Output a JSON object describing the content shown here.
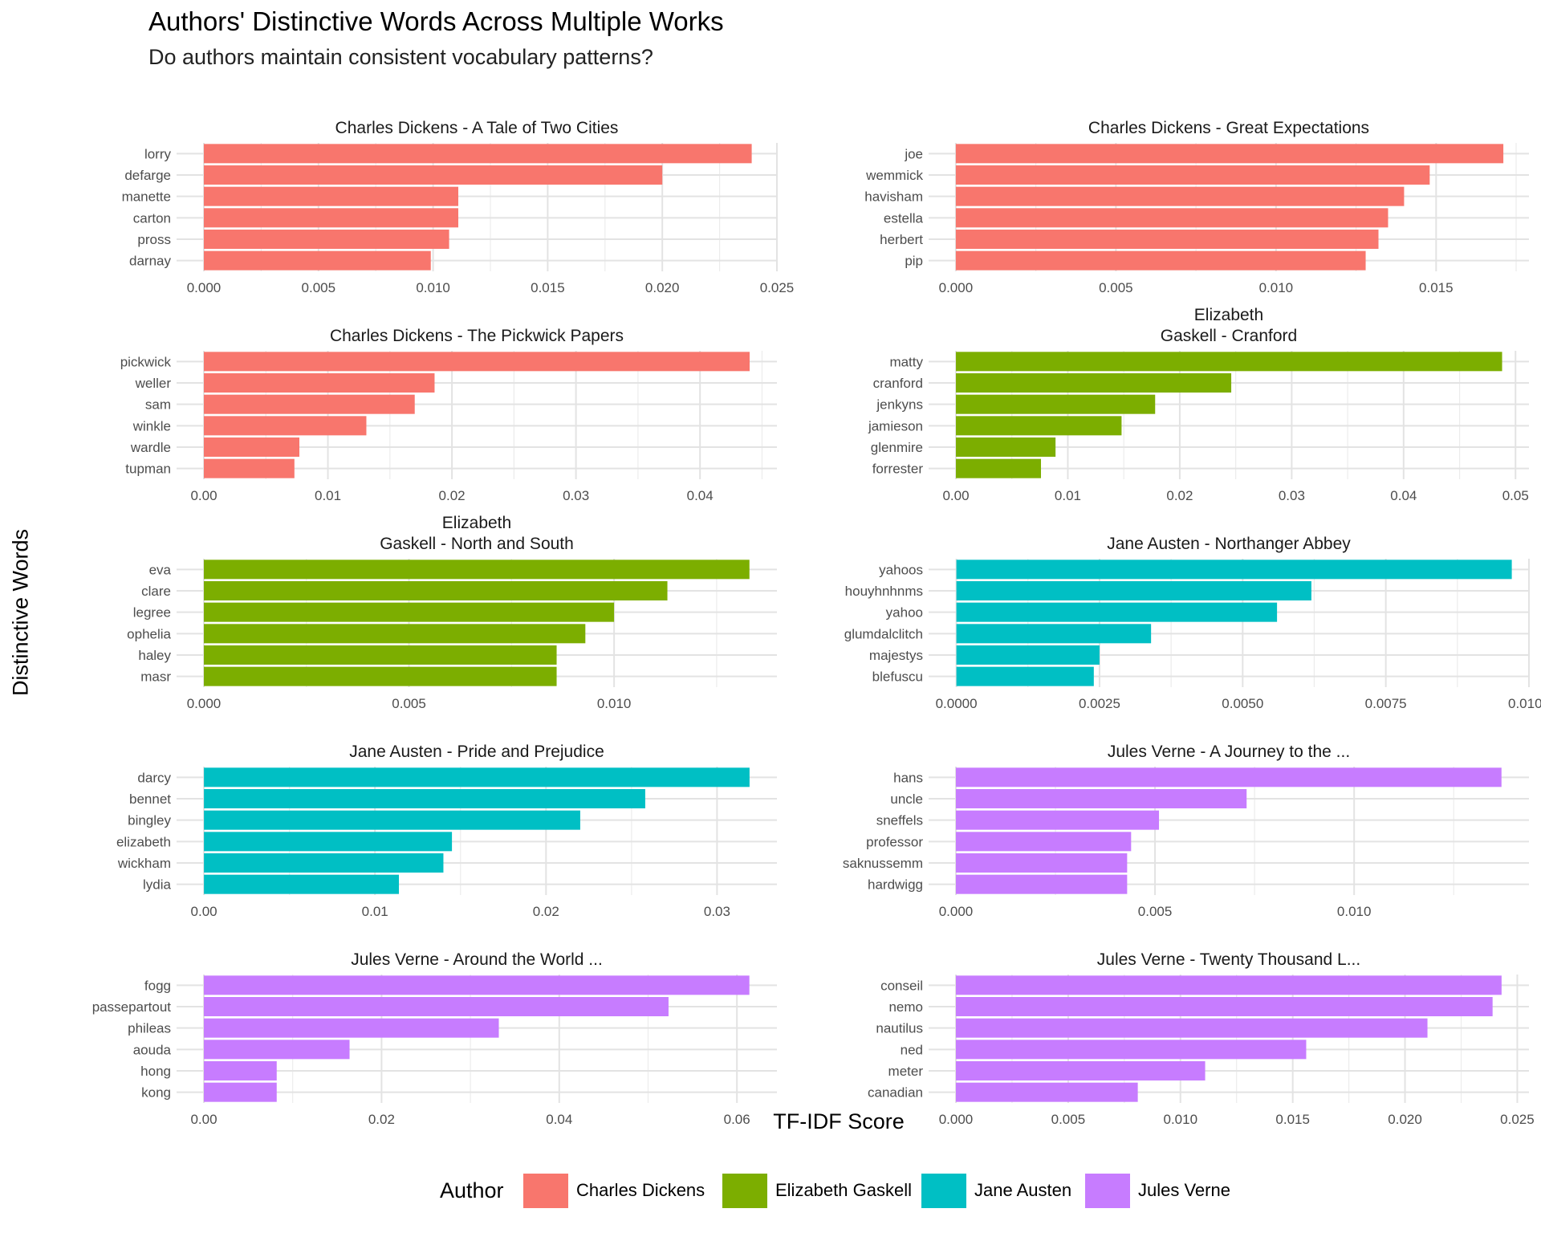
{
  "title": "Authors' Distinctive Words Across Multiple Works",
  "subtitle": "Do authors maintain consistent vocabulary patterns?",
  "xlabel": "TF-IDF Score",
  "ylabel": "Distinctive Words",
  "legend": {
    "title": "Author",
    "position": "bottom",
    "entries": [
      {
        "name": "Charles Dickens",
        "color": "#F8766D"
      },
      {
        "name": "Elizabeth Gaskell",
        "color": "#7CAE00"
      },
      {
        "name": "Jane Austen",
        "color": "#00BFC4"
      },
      {
        "name": "Jules Verne",
        "color": "#C77CFF"
      }
    ]
  },
  "chart_data": [
    {
      "type": "bar",
      "orientation": "horizontal",
      "panel_title": "Charles Dickens - A Tale of Two Cities",
      "author": "Charles Dickens",
      "categories": [
        "lorry",
        "defarge",
        "manette",
        "carton",
        "pross",
        "darnay"
      ],
      "values": [
        0.0239,
        0.02,
        0.0111,
        0.0111,
        0.0107,
        0.0099
      ],
      "ticks": [
        "0.000",
        "0.005",
        "0.010",
        "0.015",
        "0.020",
        "0.025"
      ],
      "xlim": [
        -0.00119,
        0.025
      ],
      "tick_values": [
        0,
        0.005,
        0.01,
        0.015,
        0.02,
        0.025
      ]
    },
    {
      "type": "bar",
      "orientation": "horizontal",
      "panel_title": "Charles Dickens - Great Expectations",
      "author": "Charles Dickens",
      "categories": [
        "joe",
        "wemmick",
        "havisham",
        "estella",
        "herbert",
        "pip"
      ],
      "values": [
        0.0171,
        0.0148,
        0.014,
        0.0135,
        0.0132,
        0.0128
      ],
      "ticks": [
        "0.000",
        "0.005",
        "0.010",
        "0.015"
      ],
      "xlim": [
        -0.00085,
        0.0179
      ],
      "tick_values": [
        0,
        0.005,
        0.01,
        0.015
      ]
    },
    {
      "type": "bar",
      "orientation": "horizontal",
      "panel_title": "Charles Dickens - The Pickwick Papers",
      "author": "Charles Dickens",
      "categories": [
        "pickwick",
        "weller",
        "sam",
        "winkle",
        "wardle",
        "tupman"
      ],
      "values": [
        0.044,
        0.0186,
        0.017,
        0.0131,
        0.0077,
        0.0073
      ],
      "ticks": [
        "0.00",
        "0.01",
        "0.02",
        "0.03",
        "0.04"
      ],
      "xlim": [
        -0.0022,
        0.0462
      ],
      "tick_values": [
        0,
        0.01,
        0.02,
        0.03,
        0.04
      ]
    },
    {
      "type": "bar",
      "orientation": "horizontal",
      "panel_title": "Elizabeth\nGaskell - Cranford",
      "author": "Elizabeth Gaskell",
      "categories": [
        "matty",
        "cranford",
        "jenkyns",
        "jamieson",
        "glenmire",
        "forrester"
      ],
      "values": [
        0.0488,
        0.0246,
        0.0178,
        0.0148,
        0.0089,
        0.0076
      ],
      "ticks": [
        "0.00",
        "0.01",
        "0.02",
        "0.03",
        "0.04",
        "0.05"
      ],
      "xlim": [
        -0.00244,
        0.0512
      ],
      "tick_values": [
        0,
        0.01,
        0.02,
        0.03,
        0.04,
        0.05
      ]
    },
    {
      "type": "bar",
      "orientation": "horizontal",
      "panel_title": "Elizabeth\nGaskell - North and South",
      "author": "Elizabeth Gaskell",
      "categories": [
        "eva",
        "clare",
        "legree",
        "ophelia",
        "haley",
        "masr"
      ],
      "values": [
        0.0133,
        0.0113,
        0.01,
        0.0093,
        0.0086,
        0.0086
      ],
      "ticks": [
        "0.000",
        "0.005",
        "0.010"
      ],
      "xlim": [
        -0.000665,
        0.01397
      ],
      "tick_values": [
        0,
        0.005,
        0.01
      ]
    },
    {
      "type": "bar",
      "orientation": "horizontal",
      "panel_title": "Jane Austen - Northanger Abbey",
      "author": "Jane Austen",
      "categories": [
        "yahoos",
        "houyhnhnms",
        "yahoo",
        "glumdalclitch",
        "majestys",
        "blefuscu"
      ],
      "values": [
        0.0097,
        0.0062,
        0.0056,
        0.0034,
        0.0025,
        0.0024
      ],
      "ticks": [
        "0.0000",
        "0.0025",
        "0.0050",
        "0.0075",
        "0.0100"
      ],
      "xlim": [
        -0.000485,
        0.01
      ],
      "tick_values": [
        0,
        0.0025,
        0.005,
        0.0075,
        0.01
      ]
    },
    {
      "type": "bar",
      "orientation": "horizontal",
      "panel_title": "Jane Austen - Pride and Prejudice",
      "author": "Jane Austen",
      "categories": [
        "darcy",
        "bennet",
        "bingley",
        "elizabeth",
        "wickham",
        "lydia"
      ],
      "values": [
        0.0319,
        0.0258,
        0.022,
        0.0145,
        0.014,
        0.0114
      ],
      "ticks": [
        "0.00",
        "0.01",
        "0.02",
        "0.03"
      ],
      "xlim": [
        -0.0016,
        0.0335
      ],
      "tick_values": [
        0,
        0.01,
        0.02,
        0.03
      ]
    },
    {
      "type": "bar",
      "orientation": "horizontal",
      "panel_title": "Jules Verne - A Journey to the ...",
      "author": "Jules Verne",
      "categories": [
        "hans",
        "uncle",
        "sneffels",
        "professor",
        "saknussemm",
        "hardwigg"
      ],
      "values": [
        0.0137,
        0.0073,
        0.0051,
        0.0044,
        0.0043,
        0.0043
      ],
      "ticks": [
        "0.000",
        "0.005",
        "0.010"
      ],
      "xlim": [
        -0.000685,
        0.01439
      ],
      "tick_values": [
        0,
        0.005,
        0.01
      ]
    },
    {
      "type": "bar",
      "orientation": "horizontal",
      "panel_title": "Jules Verne - Around the World ...",
      "author": "Jules Verne",
      "categories": [
        "fogg",
        "passepartout",
        "phileas",
        "aouda",
        "hong",
        "kong"
      ],
      "values": [
        0.0614,
        0.0523,
        0.0332,
        0.0164,
        0.0082,
        0.0082
      ],
      "ticks": [
        "0.00",
        "0.02",
        "0.04",
        "0.06"
      ],
      "xlim": [
        -0.00307,
        0.0645
      ],
      "tick_values": [
        0,
        0.02,
        0.04,
        0.06
      ]
    },
    {
      "type": "bar",
      "orientation": "horizontal",
      "panel_title": "Jules Verne - Twenty Thousand L...",
      "author": "Jules Verne",
      "categories": [
        "conseil",
        "nemo",
        "nautilus",
        "ned",
        "meter",
        "canadian"
      ],
      "values": [
        0.0243,
        0.0239,
        0.021,
        0.0156,
        0.0111,
        0.0081
      ],
      "ticks": [
        "0.000",
        "0.005",
        "0.010",
        "0.015",
        "0.020",
        "0.025"
      ],
      "xlim": [
        -0.001215,
        0.02552
      ],
      "tick_values": [
        0,
        0.005,
        0.01,
        0.015,
        0.02,
        0.025
      ]
    }
  ]
}
